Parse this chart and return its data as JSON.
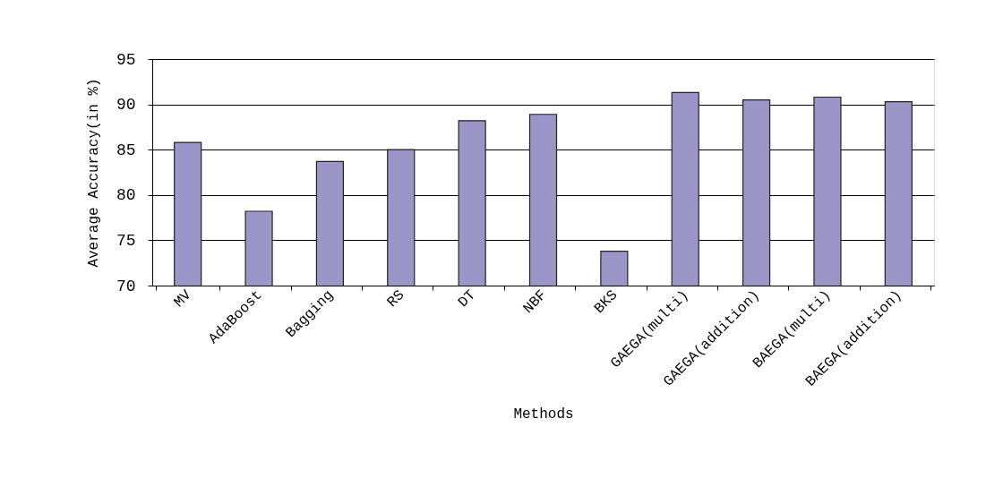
{
  "chart_data": {
    "type": "bar",
    "xlabel": "Methods",
    "ylabel": "Average Accuracy(in %)",
    "categories": [
      "MV",
      "AdaBoost",
      "Bagging",
      "RS",
      "DT",
      "NBF",
      "BKS",
      "GAEGA(multi)",
      "GAEGA(addition)",
      "BAEGA(multi)",
      "BAEGA(addition)"
    ],
    "values": [
      85.8,
      78.2,
      83.7,
      85.0,
      88.2,
      88.9,
      73.8,
      91.3,
      90.5,
      90.8,
      90.3
    ],
    "color": "#9c95c8",
    "ylim": [
      70,
      95
    ],
    "yticks": [
      70,
      75,
      80,
      85,
      90,
      95
    ],
    "grid": "y"
  }
}
